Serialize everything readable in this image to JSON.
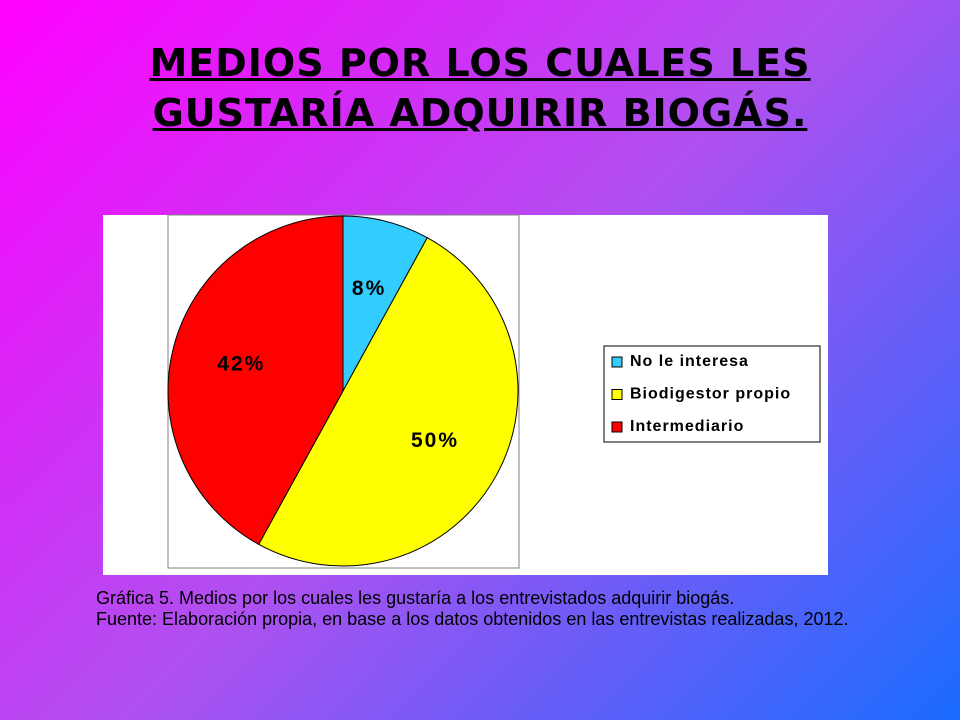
{
  "chart_data": {
    "type": "pie",
    "title": "MEDIOS POR LOS CUALES LES GUSTARÍA ADQUIRIR BIOGÁS.",
    "categories": [
      "No le interesa",
      "Biodigestor propio",
      "Intermediario"
    ],
    "values": [
      8,
      50,
      42
    ],
    "value_labels": [
      "8%",
      "50%",
      "42%"
    ],
    "colors": [
      "#33ccff",
      "#ffff00",
      "#ff0000"
    ],
    "legend": "right"
  },
  "captions": [
    "Gráfica 5. Medios por los cuales les gustaría a los entrevistados adquirir biogás.",
    "Fuente: Elaboración propia, en base a los datos obtenidos en las entrevistas realizadas, 2012."
  ]
}
